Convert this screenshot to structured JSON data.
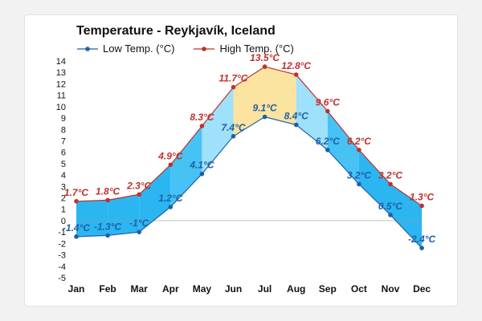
{
  "chart_data": {
    "type": "area",
    "title": "Temperature - Reykjavík, Iceland",
    "xlabel": "",
    "ylabel": "",
    "categories": [
      "Jan",
      "Feb",
      "Mar",
      "Apr",
      "May",
      "Jun",
      "Jul",
      "Aug",
      "Sep",
      "Oct",
      "Nov",
      "Dec"
    ],
    "ylim": [
      -5,
      14
    ],
    "yticks": [
      14,
      13,
      12,
      11,
      10,
      9,
      8,
      7,
      6,
      5,
      4,
      3,
      2,
      1,
      0,
      -1,
      -2,
      -3,
      -4,
      -5
    ],
    "grid": false,
    "legend_position": "top-left",
    "series": [
      {
        "name": "Low Temp. (°C)",
        "values": [
          -1.4,
          -1.3,
          -1,
          1.2,
          4.1,
          7.4,
          9.1,
          8.4,
          6.2,
          3.2,
          0.5,
          -2.4
        ],
        "labels": [
          "-1.4°C",
          "-1.3°C",
          "-1°C",
          "1.2°C",
          "4.1°C",
          "7.4°C",
          "9.1°C",
          "8.4°C",
          "6.2°C",
          "3.2°C",
          "0.5°C",
          "-2.4°C"
        ],
        "color": "#1f5fa8"
      },
      {
        "name": "High Temp. (°C)",
        "values": [
          1.7,
          1.8,
          2.3,
          4.9,
          8.3,
          11.7,
          13.5,
          12.8,
          9.6,
          6.2,
          3.2,
          1.3
        ],
        "labels": [
          "1.7°C",
          "1.8°C",
          "2.3°C",
          "4.9°C",
          "8.3°C",
          "11.7°C",
          "13.5°C",
          "12.8°C",
          "9.6°C",
          "6.2°C",
          "3.2°C",
          "1.3°C"
        ],
        "color": "#c0312b"
      }
    ],
    "band_colors": [
      "#2bb6f2",
      "#2bb6f2",
      "#2bb6f2",
      "#46c2f5",
      "#9fe0fb",
      "#fbe3a0",
      "#fbe3a0",
      "#9fe0fb",
      "#46c2f5",
      "#2bb6f2",
      "#2bb6f2"
    ]
  }
}
